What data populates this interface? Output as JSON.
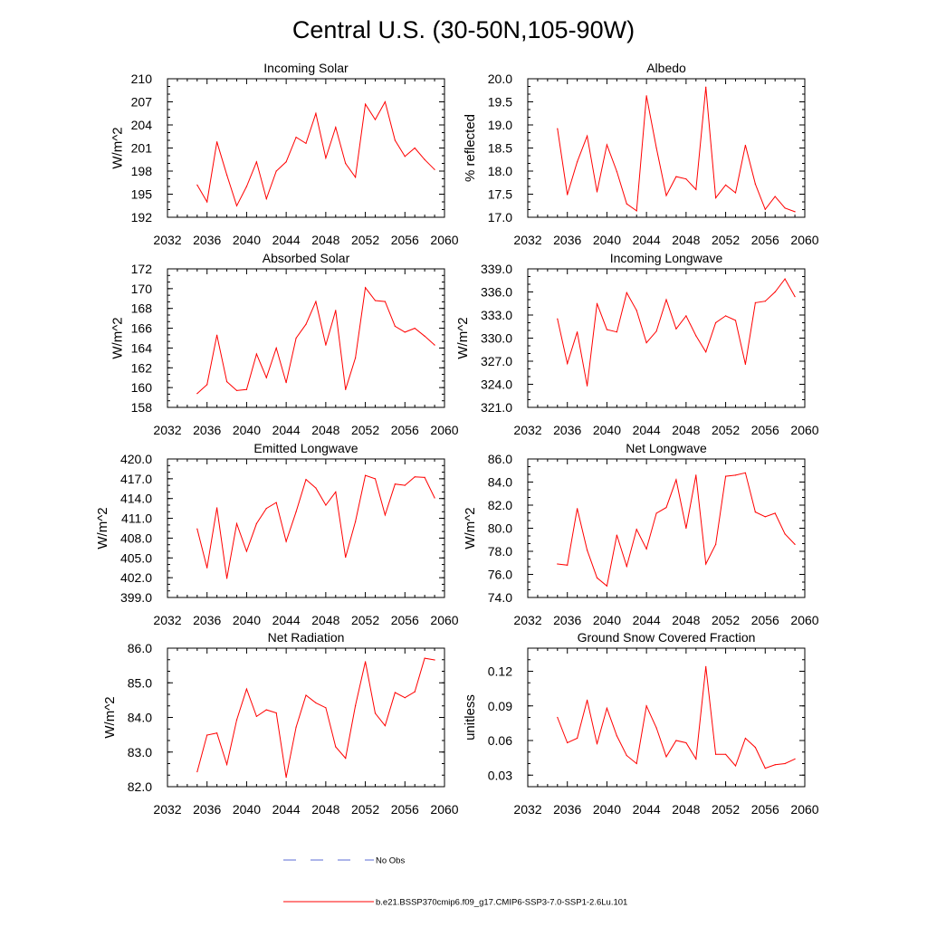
{
  "page_title": "Central U.S. (30-50N,105-90W)",
  "legend": {
    "no_obs_label": "No Obs",
    "model_label": "b.e21.BSSP370cmip6.f09_g17.CMIP6-SSP3-7.0-SSP1-2.6Lu.101",
    "no_obs_color": "#5b6bd6",
    "model_color": "#ff0000"
  },
  "chart_data": [
    {
      "type": "line",
      "title": "Incoming Solar",
      "ylabel": "W/m^2",
      "xlabel": "",
      "xlim": [
        2032,
        2060
      ],
      "ylim": [
        192,
        210
      ],
      "xticks": [
        "2032",
        "2036",
        "2040",
        "2044",
        "2048",
        "2052",
        "2056",
        "2060"
      ],
      "yticks": [
        "192",
        "195",
        "198",
        "201",
        "204",
        "207",
        "210"
      ],
      "x": [
        2035,
        2036,
        2037,
        2038,
        2039,
        2040,
        2041,
        2042,
        2043,
        2044,
        2045,
        2046,
        2047,
        2048,
        2049,
        2050,
        2051,
        2052,
        2053,
        2054,
        2055,
        2056,
        2057,
        2058,
        2059
      ],
      "values": [
        196.2,
        194.0,
        201.8,
        197.5,
        193.5,
        196.0,
        199.2,
        194.4,
        198.0,
        199.2,
        202.4,
        201.6,
        205.5,
        199.7,
        203.7,
        199.0,
        197.2,
        206.7,
        204.7,
        207.0,
        202.0,
        199.9,
        201.0,
        199.5,
        198.2
      ],
      "color": "#ff0000"
    },
    {
      "type": "line",
      "title": "Albedo",
      "ylabel": "% reflected",
      "xlabel": "",
      "xlim": [
        2032,
        2060
      ],
      "ylim": [
        17.0,
        20.0
      ],
      "xticks": [
        "2032",
        "2036",
        "2040",
        "2044",
        "2048",
        "2052",
        "2056",
        "2060"
      ],
      "yticks": [
        "17.0",
        "17.5",
        "18.0",
        "18.5",
        "19.0",
        "19.5",
        "20.0"
      ],
      "x": [
        2035,
        2036,
        2037,
        2038,
        2039,
        2040,
        2041,
        2042,
        2043,
        2044,
        2045,
        2046,
        2047,
        2048,
        2049,
        2050,
        2051,
        2052,
        2053,
        2054,
        2055,
        2056,
        2057,
        2058,
        2059
      ],
      "values": [
        18.92,
        17.49,
        18.2,
        18.76,
        17.55,
        18.57,
        17.99,
        17.29,
        17.14,
        19.63,
        18.5,
        17.47,
        17.88,
        17.83,
        17.6,
        19.82,
        17.42,
        17.7,
        17.53,
        18.56,
        17.72,
        17.17,
        17.45,
        17.2,
        17.12
      ],
      "color": "#ff0000"
    },
    {
      "type": "line",
      "title": "Absorbed Solar",
      "ylabel": "W/m^2",
      "xlabel": "",
      "xlim": [
        2032,
        2060
      ],
      "ylim": [
        158,
        172
      ],
      "xticks": [
        "2032",
        "2036",
        "2040",
        "2044",
        "2048",
        "2052",
        "2056",
        "2060"
      ],
      "yticks": [
        "158",
        "160",
        "162",
        "164",
        "166",
        "168",
        "170",
        "172"
      ],
      "x": [
        2035,
        2036,
        2037,
        2038,
        2039,
        2040,
        2041,
        2042,
        2043,
        2044,
        2045,
        2046,
        2047,
        2048,
        2049,
        2050,
        2051,
        2052,
        2053,
        2054,
        2055,
        2056,
        2057,
        2058,
        2059
      ],
      "values": [
        159.4,
        160.3,
        165.3,
        160.6,
        159.7,
        159.8,
        163.4,
        161.0,
        164.0,
        160.5,
        165.0,
        166.4,
        168.7,
        164.3,
        167.8,
        159.8,
        163.0,
        170.1,
        168.8,
        168.7,
        166.2,
        165.6,
        166.0,
        165.2,
        164.3
      ],
      "color": "#ff0000"
    },
    {
      "type": "line",
      "title": "Incoming Longwave",
      "ylabel": "W/m^2",
      "xlabel": "",
      "xlim": [
        2032,
        2060
      ],
      "ylim": [
        321.0,
        339.0
      ],
      "xticks": [
        "2032",
        "2036",
        "2040",
        "2044",
        "2048",
        "2052",
        "2056",
        "2060"
      ],
      "yticks": [
        "321.0",
        "324.0",
        "327.0",
        "330.0",
        "333.0",
        "336.0",
        "339.0"
      ],
      "x": [
        2035,
        2036,
        2037,
        2038,
        2039,
        2040,
        2041,
        2042,
        2043,
        2044,
        2045,
        2046,
        2047,
        2048,
        2049,
        2050,
        2051,
        2052,
        2053,
        2054,
        2055,
        2056,
        2057,
        2058,
        2059
      ],
      "values": [
        332.5,
        326.7,
        330.8,
        323.8,
        334.5,
        331.1,
        330.8,
        335.9,
        333.6,
        329.4,
        330.9,
        335.0,
        331.2,
        332.9,
        330.3,
        328.2,
        332.0,
        332.9,
        332.3,
        326.6,
        334.6,
        334.8,
        336.0,
        337.7,
        335.4
      ],
      "color": "#ff0000"
    },
    {
      "type": "line",
      "title": "Emitted Longwave",
      "ylabel": "W/m^2",
      "xlabel": "",
      "xlim": [
        2032,
        2060
      ],
      "ylim": [
        399.0,
        420.0
      ],
      "xticks": [
        "2032",
        "2036",
        "2040",
        "2044",
        "2048",
        "2052",
        "2056",
        "2060"
      ],
      "yticks": [
        "399.0",
        "402.0",
        "405.0",
        "408.0",
        "411.0",
        "414.0",
        "417.0",
        "420.0"
      ],
      "x": [
        2035,
        2036,
        2037,
        2038,
        2039,
        2040,
        2041,
        2042,
        2043,
        2044,
        2045,
        2046,
        2047,
        2048,
        2049,
        2050,
        2051,
        2052,
        2053,
        2054,
        2055,
        2056,
        2057,
        2058,
        2059
      ],
      "values": [
        409.4,
        403.5,
        412.6,
        401.9,
        410.2,
        406.0,
        410.2,
        412.5,
        413.4,
        407.5,
        412.0,
        416.9,
        415.6,
        413.0,
        415.0,
        405.1,
        410.5,
        417.5,
        417.0,
        411.5,
        416.2,
        416.0,
        417.3,
        417.2,
        414.1
      ],
      "color": "#ff0000"
    },
    {
      "type": "line",
      "title": "Net Longwave",
      "ylabel": "W/m^2",
      "xlabel": "",
      "xlim": [
        2032,
        2060
      ],
      "ylim": [
        74.0,
        86.0
      ],
      "xticks": [
        "2032",
        "2036",
        "2040",
        "2044",
        "2048",
        "2052",
        "2056",
        "2060"
      ],
      "yticks": [
        "74.0",
        "76.0",
        "78.0",
        "80.0",
        "82.0",
        "84.0",
        "86.0"
      ],
      "x": [
        2035,
        2036,
        2037,
        2038,
        2039,
        2040,
        2041,
        2042,
        2043,
        2044,
        2045,
        2046,
        2047,
        2048,
        2049,
        2050,
        2051,
        2052,
        2053,
        2054,
        2055,
        2056,
        2057,
        2058,
        2059
      ],
      "values": [
        76.9,
        76.8,
        81.7,
        78.1,
        75.7,
        75.0,
        79.4,
        76.7,
        79.9,
        78.2,
        81.3,
        81.8,
        84.2,
        80.0,
        84.6,
        76.9,
        78.6,
        84.5,
        84.6,
        84.8,
        81.4,
        81.0,
        81.3,
        79.5,
        78.6
      ],
      "color": "#ff0000"
    },
    {
      "type": "line",
      "title": "Net Radiation",
      "ylabel": "W/m^2",
      "xlabel": "",
      "xlim": [
        2032,
        2060
      ],
      "ylim": [
        82.0,
        86.0
      ],
      "xticks": [
        "2032",
        "2036",
        "2040",
        "2044",
        "2048",
        "2052",
        "2056",
        "2060"
      ],
      "yticks": [
        "82.0",
        "83.0",
        "84.0",
        "85.0",
        "86.0"
      ],
      "x": [
        2035,
        2036,
        2037,
        2038,
        2039,
        2040,
        2041,
        2042,
        2043,
        2044,
        2045,
        2046,
        2047,
        2048,
        2049,
        2050,
        2051,
        2052,
        2053,
        2054,
        2055,
        2056,
        2057,
        2058,
        2059
      ],
      "values": [
        82.43,
        83.49,
        83.55,
        82.64,
        83.93,
        84.82,
        84.03,
        84.22,
        84.13,
        82.27,
        83.72,
        84.64,
        84.42,
        84.28,
        83.15,
        82.82,
        84.34,
        85.61,
        84.12,
        83.76,
        84.72,
        84.57,
        84.74,
        85.71,
        85.66
      ],
      "color": "#ff0000"
    },
    {
      "type": "line",
      "title": "Ground Snow Covered Fraction",
      "ylabel": "unitless",
      "xlabel": "",
      "xlim": [
        2032,
        2060
      ],
      "ylim": [
        0.02,
        0.14
      ],
      "xticks": [
        "2032",
        "2036",
        "2040",
        "2044",
        "2048",
        "2052",
        "2056",
        "2060"
      ],
      "yticks": [
        "0.03",
        "0.06",
        "0.09",
        "0.12"
      ],
      "x": [
        2035,
        2036,
        2037,
        2038,
        2039,
        2040,
        2041,
        2042,
        2043,
        2044,
        2045,
        2046,
        2047,
        2048,
        2049,
        2050,
        2051,
        2052,
        2053,
        2054,
        2055,
        2056,
        2057,
        2058,
        2059
      ],
      "values": [
        0.08,
        0.058,
        0.062,
        0.095,
        0.057,
        0.088,
        0.064,
        0.047,
        0.04,
        0.09,
        0.071,
        0.046,
        0.06,
        0.058,
        0.044,
        0.124,
        0.048,
        0.048,
        0.038,
        0.062,
        0.054,
        0.036,
        0.039,
        0.04,
        0.044
      ],
      "color": "#ff0000"
    }
  ]
}
